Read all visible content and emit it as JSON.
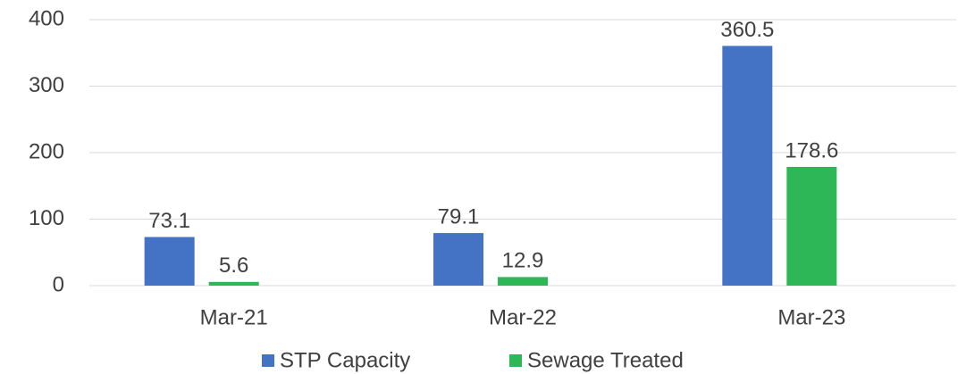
{
  "chart_data": {
    "type": "bar",
    "categories": [
      "Mar-21",
      "Mar-22",
      "Mar-23"
    ],
    "series": [
      {
        "name": "STP Capacity",
        "color": "#4472c4",
        "values": [
          73.1,
          79.1,
          360.5
        ]
      },
      {
        "name": "Sewage Treated",
        "color": "#2db757",
        "values": [
          5.6,
          12.9,
          178.6
        ]
      }
    ],
    "ylim": [
      0,
      400
    ],
    "yticks": [
      0,
      100,
      200,
      300,
      400
    ],
    "grid": true,
    "legend": "bottom"
  }
}
